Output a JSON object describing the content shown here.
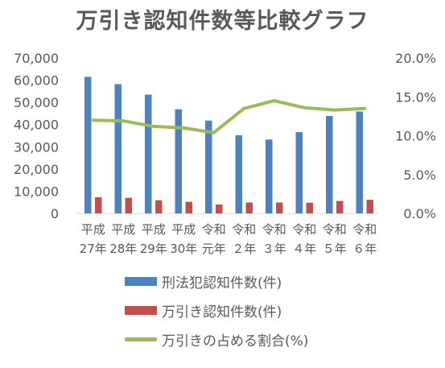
{
  "chart_data": {
    "type": "bar+line",
    "title": "万引き認知件数等比較グラフ",
    "categories": [
      [
        "平成",
        "27年"
      ],
      [
        "平成",
        "28年"
      ],
      [
        "平成",
        "29年"
      ],
      [
        "平成",
        "30年"
      ],
      [
        "令和",
        "元年"
      ],
      [
        "令和",
        "２年"
      ],
      [
        "令和",
        "３年"
      ],
      [
        "令和",
        "４年"
      ],
      [
        "令和",
        "５年"
      ],
      [
        "令和",
        "６年"
      ]
    ],
    "series": [
      {
        "name": "刑法犯認知件数(件)",
        "type": "bar",
        "axis": "left",
        "color": "#4f81bd",
        "values": [
          61500,
          58200,
          53500,
          46900,
          41800,
          35200,
          33300,
          36600,
          43900,
          45900
        ]
      },
      {
        "name": "万引き認知件数(件)",
        "type": "bar",
        "axis": "left",
        "color": "#c0504d",
        "values": [
          7300,
          7000,
          5900,
          5200,
          4000,
          4900,
          4900,
          4800,
          5600,
          6100
        ]
      },
      {
        "name": "万引きの占める割合(%)",
        "type": "line",
        "axis": "right",
        "color": "#9bbb59",
        "values": [
          12.0,
          11.9,
          11.2,
          11.0,
          10.4,
          13.5,
          14.5,
          13.6,
          13.3,
          13.5
        ]
      }
    ],
    "y_left": {
      "min": 0,
      "max": 70000,
      "ticks": [
        "0",
        "10,000",
        "20,000",
        "30,000",
        "40,000",
        "50,000",
        "60,000",
        "70,000"
      ]
    },
    "y_right": {
      "min": 0,
      "max": 20,
      "ticks": [
        "0.0%",
        "5.0%",
        "10.0%",
        "15.0%",
        "20.0%"
      ]
    },
    "grid": false,
    "legend_position": "bottom"
  }
}
